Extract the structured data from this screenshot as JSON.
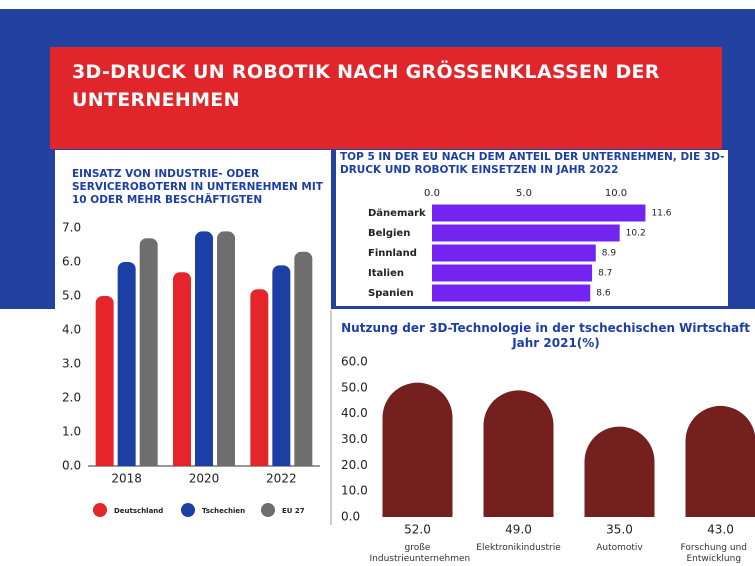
{
  "header": {
    "title": "3D-DRUCK UN ROBOTIK NACH GRÖSSENKLASSEN DER UNTERNEHMEN"
  },
  "chart_data": [
    {
      "type": "bar",
      "title": "EINSATZ VON INDUSTRIE- ODER SERVICEROBOTERN IN UNTERNEHMEN MIT 10 ODER MEHR BESCHÄFTIGTEN",
      "categories": [
        "2018",
        "2020",
        "2022"
      ],
      "series": [
        {
          "name": "Deutschland",
          "color": "#e4262b",
          "values": [
            5.0,
            5.7,
            5.2
          ]
        },
        {
          "name": "Tschechien",
          "color": "#1c3fa6",
          "values": [
            6.0,
            6.9,
            5.9
          ]
        },
        {
          "name": "EU 27",
          "color": "#6e6e6e",
          "values": [
            6.7,
            6.9,
            6.3
          ]
        }
      ],
      "ylim": [
        0,
        7
      ],
      "yticks": [
        {
          "value": 0,
          "label": "0.0"
        },
        {
          "value": 1,
          "label": "1.0"
        },
        {
          "value": 2,
          "label": "2.0"
        },
        {
          "value": 3,
          "label": "3.0"
        },
        {
          "value": 4,
          "label": "4.0"
        },
        {
          "value": 5,
          "label": "5.0"
        },
        {
          "value": 6,
          "label": "6.0"
        },
        {
          "value": 7,
          "label": "7.0"
        }
      ],
      "legend": "bottom"
    },
    {
      "type": "bar",
      "orientation": "horizontal",
      "title": "TOP 5 IN DER EU NACH DEM ANTEIL DER UNTERNEHMEN, DIE 3D-DRUCK UND ROBOTIK EINSETZEN IN JAHR 2022",
      "categories": [
        "Dänemark",
        "Belgien",
        "Finnland",
        "Italien",
        "Spanien"
      ],
      "values": [
        11.6,
        10.2,
        8.9,
        8.7,
        8.6
      ],
      "color": "#7424f0",
      "xlim": [
        0,
        12.5
      ],
      "xticks": [
        {
          "value": 0,
          "label": "0.0"
        },
        {
          "value": 5,
          "label": "5.0"
        },
        {
          "value": 10,
          "label": "10.0"
        }
      ]
    },
    {
      "type": "bar",
      "title": "Nutzung der 3D-Technologie in der tschechischen Wirtschaft im Jahr 2021(%)",
      "categories": [
        "große Industrieunternehmen",
        "Elektronikindustrie",
        "Automotiv",
        "Forschung und Entwicklung"
      ],
      "values": [
        52,
        49,
        35,
        43
      ],
      "value_labels": [
        "52.0",
        "49.0",
        "35.0",
        "43.0"
      ],
      "color": "#74201f",
      "ylim": [
        0,
        60
      ],
      "yticks": [
        {
          "value": 0,
          "label": "0.0"
        },
        {
          "value": 10,
          "label": "10.0"
        },
        {
          "value": 20,
          "label": "20.0"
        },
        {
          "value": 30,
          "label": "30.0"
        },
        {
          "value": 40,
          "label": "40.0"
        },
        {
          "value": 50,
          "label": "50.0"
        },
        {
          "value": 60,
          "label": "60.0"
        }
      ]
    }
  ]
}
